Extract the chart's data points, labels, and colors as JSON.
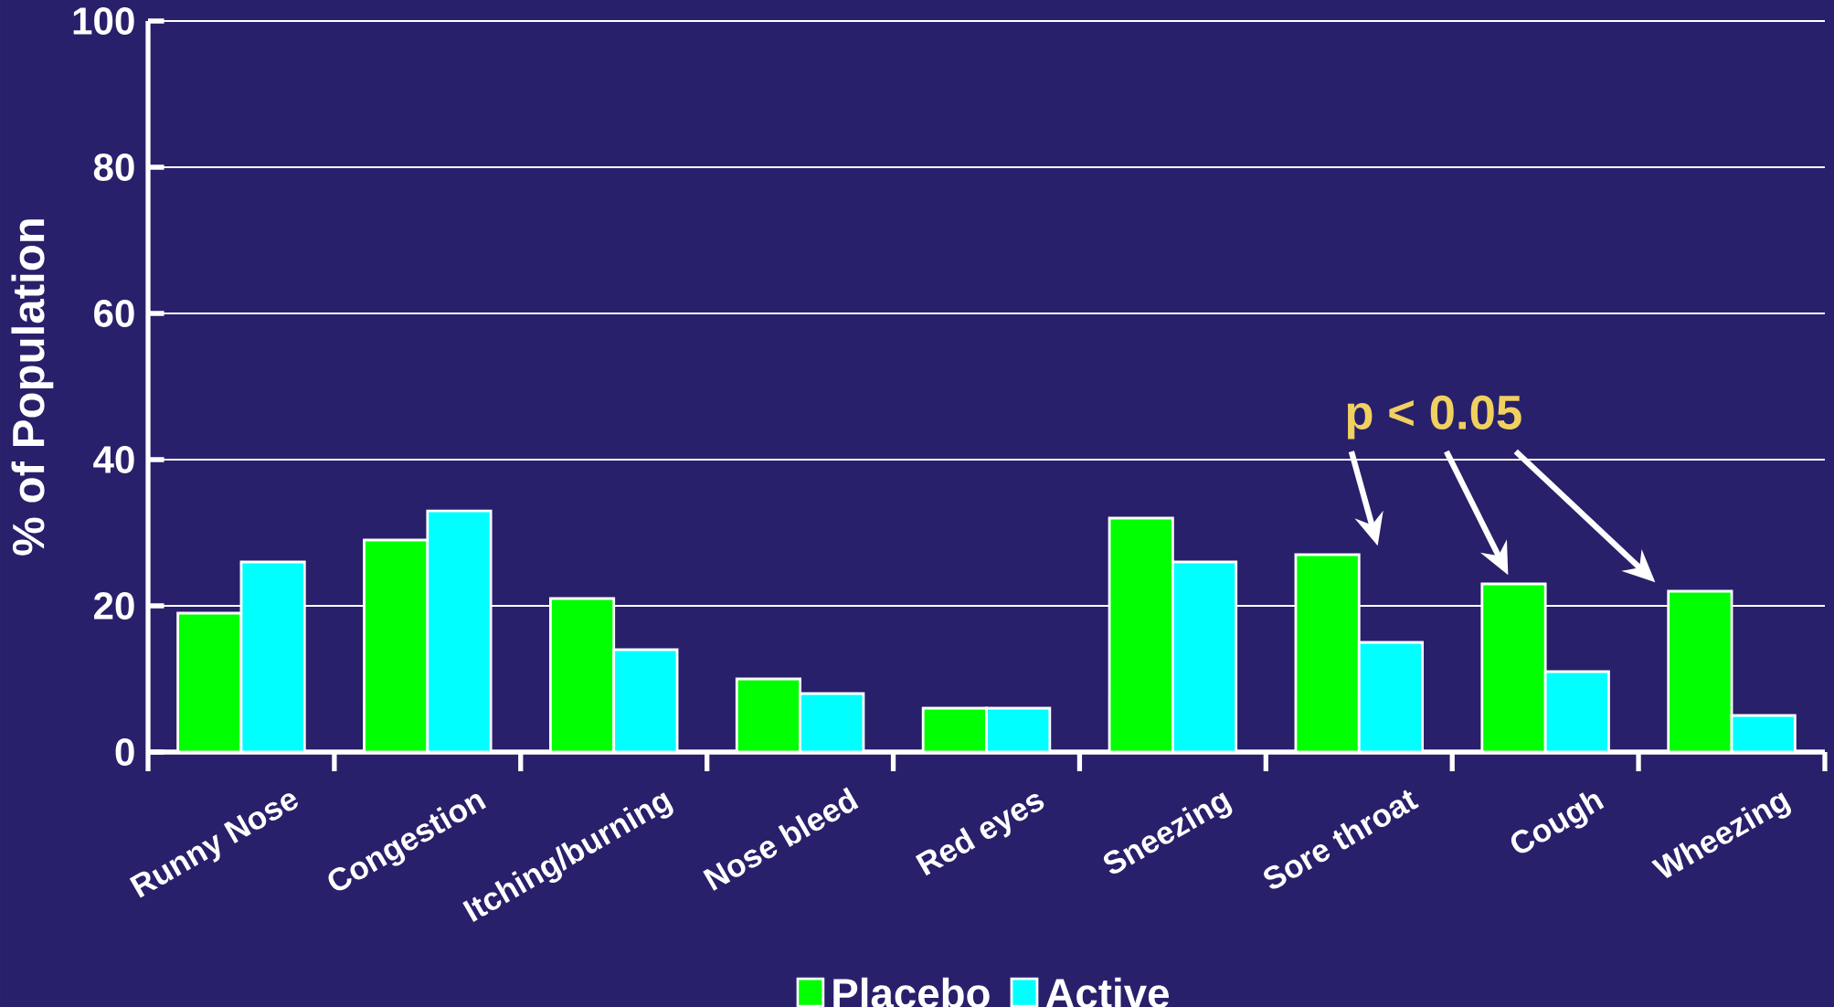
{
  "chart_data": {
    "type": "bar",
    "ylabel": "% of Population",
    "categories": [
      "Runny Nose",
      "Congestion",
      "Itching/burning",
      "Nose bleed",
      "Red eyes",
      "Sneezing",
      "Sore throat",
      "Cough",
      "Wheezing"
    ],
    "series": [
      {
        "name": "Placebo",
        "color": "#00ff00",
        "values": [
          19,
          29,
          21,
          10,
          6,
          32,
          27,
          23,
          22
        ]
      },
      {
        "name": "Active",
        "color": "#00ffff",
        "values": [
          26,
          33,
          14,
          8,
          6,
          26,
          15,
          11,
          5
        ]
      }
    ],
    "ylim": [
      0,
      100
    ],
    "yticks": [
      0,
      20,
      40,
      60,
      80,
      100
    ],
    "grid": "y",
    "legend": "bottom",
    "annotations": [
      "p < 0.05"
    ]
  }
}
